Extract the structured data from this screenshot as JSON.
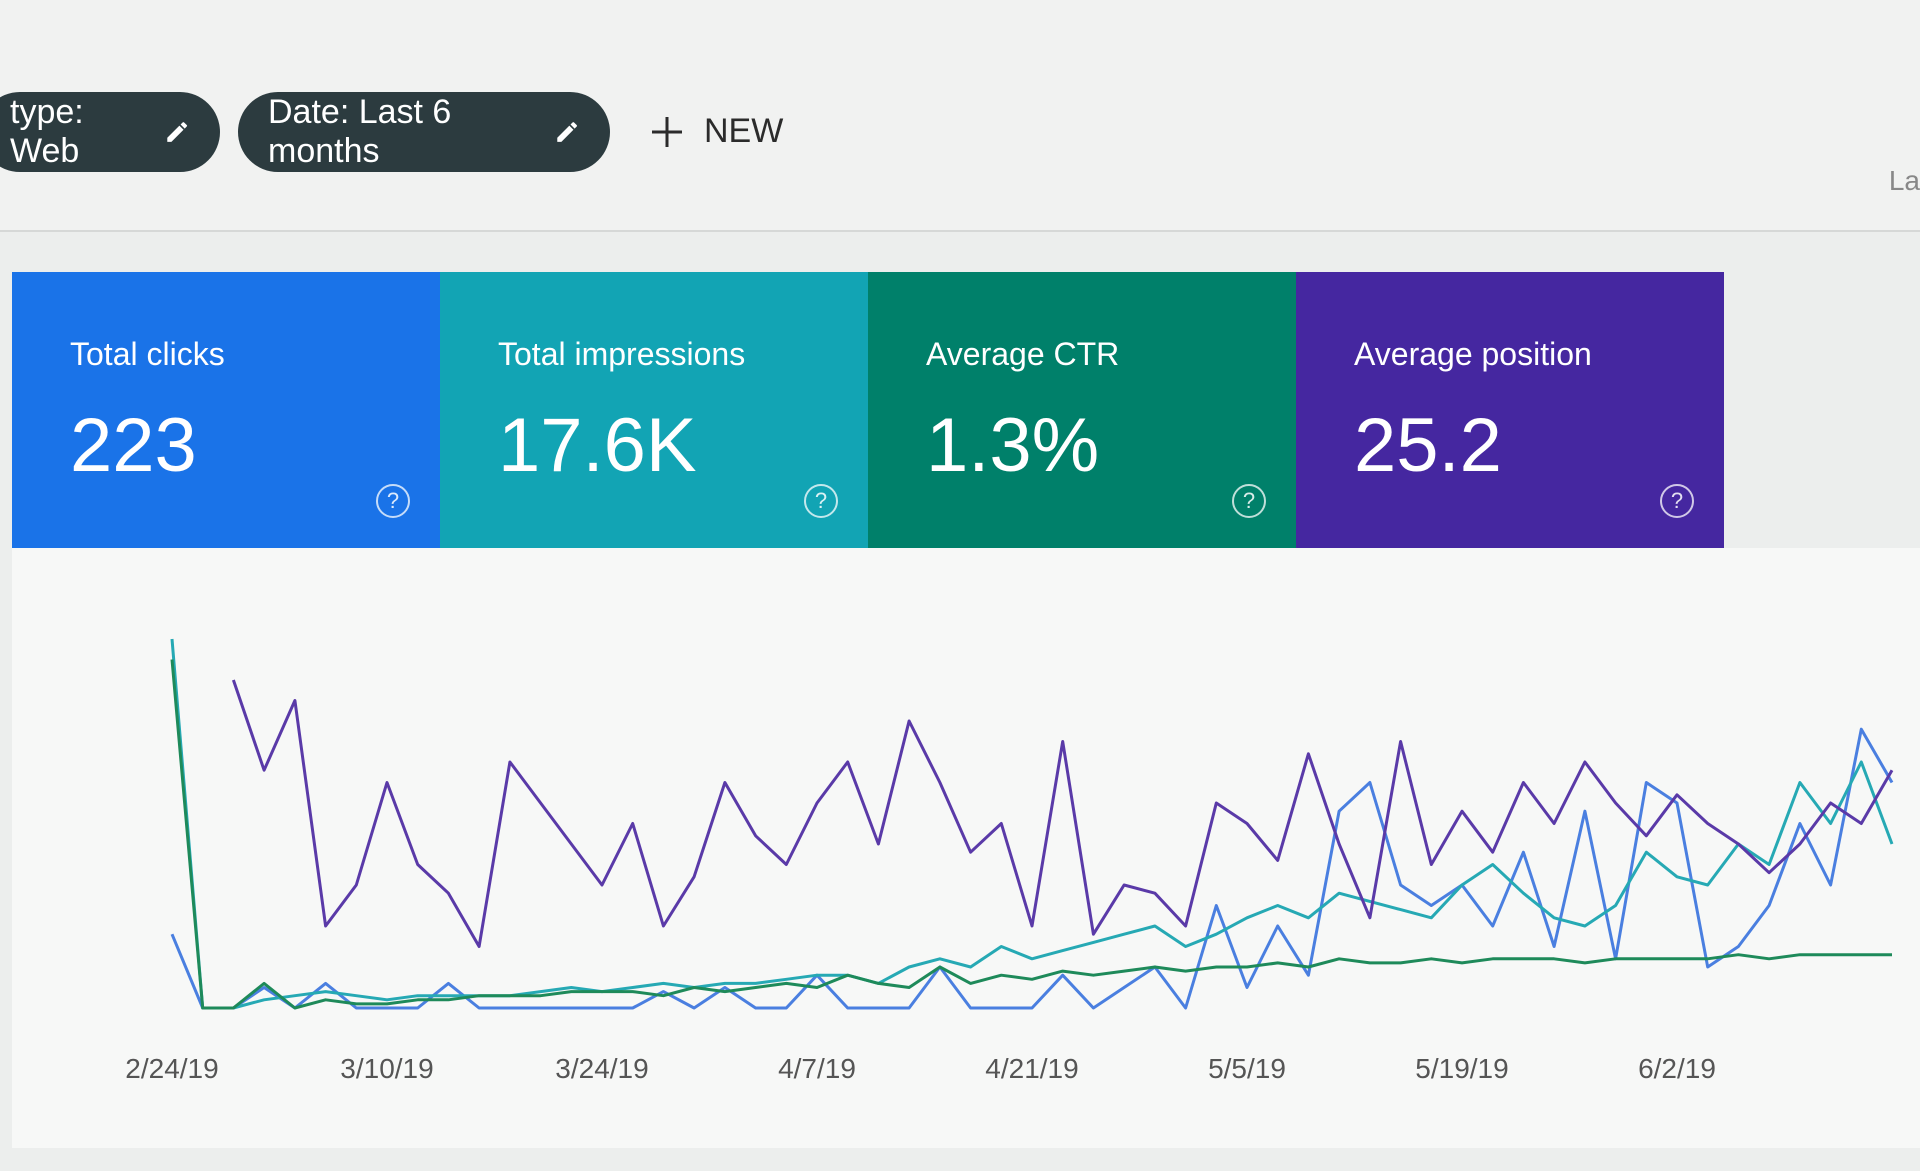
{
  "header": {
    "chips": [
      "type: Web",
      "Date: Last 6 months"
    ],
    "new_button": "NEW",
    "partial_text": "La"
  },
  "cards": [
    {
      "label": "Total clicks",
      "value": "223",
      "help": "?",
      "color": "#1a73e8"
    },
    {
      "label": "Total impressions",
      "value": "17.6K",
      "help": "?",
      "color": "#12a4b4"
    },
    {
      "label": "Average CTR",
      "value": "1.3%",
      "help": "?",
      "color": "#00806a"
    },
    {
      "label": "Average position",
      "value": "25.2",
      "help": "?",
      "color": "#4527a0"
    }
  ],
  "chart_data": {
    "type": "line",
    "categories": [
      "2/24/19",
      null,
      null,
      null,
      null,
      null,
      null,
      "3/10/19",
      null,
      null,
      null,
      null,
      null,
      null,
      "3/24/19",
      null,
      null,
      null,
      null,
      null,
      null,
      "4/7/19",
      null,
      null,
      null,
      null,
      null,
      null,
      "4/21/19",
      null,
      null,
      null,
      null,
      null,
      null,
      "5/5/19",
      null,
      null,
      null,
      null,
      null,
      null,
      "5/19/19",
      null,
      null,
      null,
      null,
      null,
      null,
      "6/2/19",
      null,
      null,
      null,
      null,
      null,
      null,
      null
    ],
    "ylim": [
      0,
      100
    ],
    "series": [
      {
        "color": "#4a7fe0",
        "values": [
          18,
          0,
          0,
          5,
          0,
          6,
          0,
          0,
          0,
          6,
          0,
          0,
          0,
          0,
          0,
          0,
          4,
          0,
          5,
          0,
          0,
          8,
          0,
          0,
          0,
          10,
          0,
          0,
          0,
          8,
          0,
          5,
          10,
          0,
          25,
          5,
          20,
          8,
          48,
          55,
          30,
          25,
          30,
          20,
          38,
          15,
          48,
          12,
          55,
          50,
          10,
          15,
          25,
          45,
          30,
          68,
          55
        ]
      },
      {
        "color": "#26a9b4",
        "values": [
          90,
          0,
          0,
          2,
          3,
          4,
          3,
          2,
          3,
          3,
          3,
          3,
          4,
          5,
          4,
          5,
          6,
          5,
          6,
          6,
          7,
          8,
          8,
          6,
          10,
          12,
          10,
          15,
          12,
          14,
          16,
          18,
          20,
          15,
          18,
          22,
          25,
          22,
          28,
          26,
          24,
          22,
          30,
          35,
          28,
          22,
          20,
          25,
          38,
          32,
          30,
          40,
          35,
          55,
          45,
          60,
          40
        ]
      },
      {
        "color": "#1e8a5a",
        "values": [
          85,
          0,
          0,
          6,
          0,
          2,
          1,
          1,
          2,
          2,
          3,
          3,
          3,
          4,
          4,
          4,
          3,
          5,
          4,
          5,
          6,
          5,
          8,
          6,
          5,
          10,
          6,
          8,
          7,
          9,
          8,
          9,
          10,
          9,
          10,
          10,
          11,
          10,
          12,
          11,
          11,
          12,
          11,
          12,
          12,
          12,
          11,
          12,
          12,
          12,
          12,
          13,
          12,
          13,
          13,
          13,
          13
        ]
      },
      {
        "color": "#5a3aa8",
        "values": [
          null,
          null,
          80,
          58,
          75,
          20,
          30,
          55,
          35,
          28,
          15,
          60,
          50,
          40,
          30,
          45,
          20,
          32,
          55,
          42,
          35,
          50,
          60,
          40,
          70,
          55,
          38,
          45,
          20,
          65,
          18,
          30,
          28,
          20,
          50,
          45,
          36,
          62,
          40,
          22,
          65,
          35,
          48,
          38,
          55,
          45,
          60,
          50,
          42,
          52,
          45,
          40,
          33,
          40,
          50,
          45,
          58
        ]
      }
    ]
  }
}
